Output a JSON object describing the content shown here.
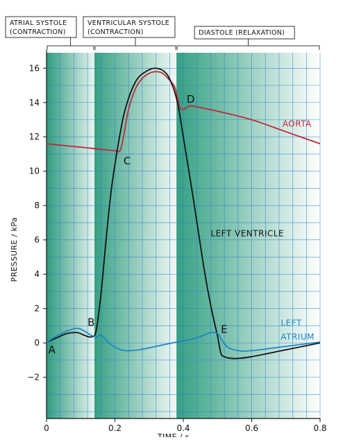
{
  "chart_data": {
    "type": "line",
    "xlabel": "TIME / s",
    "ylabel": "PRESSURE / kPa",
    "xlim": [
      0,
      0.8
    ],
    "ylim": [
      -4.4,
      16.9
    ],
    "x_ticks": [
      {
        "value": 0,
        "label": "0"
      },
      {
        "value": 0.2,
        "label": "0.2"
      },
      {
        "value": 0.4,
        "label": "0.4"
      },
      {
        "value": 0.6,
        "label": "0.6"
      },
      {
        "value": 0.8,
        "label": "0.8"
      }
    ],
    "y_ticks": [
      {
        "value": -2,
        "label": "−2"
      },
      {
        "value": 0,
        "label": "0"
      },
      {
        "value": 2,
        "label": "2"
      },
      {
        "value": 4,
        "label": "4"
      },
      {
        "value": 6,
        "label": "6"
      },
      {
        "value": 8,
        "label": "8"
      },
      {
        "value": 10,
        "label": "10"
      },
      {
        "value": 12,
        "label": "12"
      },
      {
        "value": 14,
        "label": "14"
      },
      {
        "value": 16,
        "label": "16"
      }
    ],
    "grid": true,
    "phases": [
      {
        "line1": "ATRIAL  SYSTOLE",
        "line2": "(CONTRACTION)",
        "start": 0,
        "end": 0.14
      },
      {
        "line1": "VENTRICULAR  SYSTOLE",
        "line2": "(CONTRACTION)",
        "start": 0.14,
        "end": 0.38
      },
      {
        "line1": "DIASTOLE  (RELAXATION)",
        "line2": "",
        "start": 0.38,
        "end": 0.8
      }
    ],
    "series": [
      {
        "name": "AORTA",
        "color": "#c0283c",
        "label_lines": [
          "AORTA"
        ],
        "label_at": [
          0.69,
          12.6
        ],
        "x": [
          0,
          0.05,
          0.1,
          0.15,
          0.2,
          0.215,
          0.225,
          0.24,
          0.26,
          0.28,
          0.3,
          0.32,
          0.34,
          0.36,
          0.375,
          0.385,
          0.39,
          0.4,
          0.42,
          0.45,
          0.5,
          0.6,
          0.7,
          0.8
        ],
        "y": [
          11.6,
          11.5,
          11.4,
          11.3,
          11.2,
          11.2,
          12.0,
          13.6,
          14.8,
          15.4,
          15.7,
          15.8,
          15.7,
          15.3,
          14.9,
          14.1,
          13.7,
          13.6,
          13.8,
          13.7,
          13.5,
          13.0,
          12.3,
          11.6
        ]
      },
      {
        "name": "LEFT  VENTRICLE",
        "color": "#111111",
        "label_lines": [
          "LEFT  VENTRICLE"
        ],
        "label_at": [
          0.48,
          6.2
        ],
        "x": [
          0,
          0.03,
          0.06,
          0.09,
          0.11,
          0.13,
          0.145,
          0.16,
          0.175,
          0.19,
          0.21,
          0.23,
          0.26,
          0.29,
          0.32,
          0.35,
          0.37,
          0.385,
          0.4,
          0.43,
          0.46,
          0.48,
          0.5,
          0.51,
          0.52,
          0.54,
          0.56,
          0.6,
          0.7,
          0.8
        ],
        "y": [
          0.05,
          0.3,
          0.55,
          0.6,
          0.45,
          0.35,
          0.7,
          3.0,
          6.2,
          9.0,
          11.6,
          13.6,
          15.2,
          15.8,
          16.0,
          15.7,
          14.9,
          13.8,
          12.0,
          8.3,
          4.4,
          2.2,
          0.4,
          -0.6,
          -0.8,
          -0.9,
          -0.9,
          -0.8,
          -0.4,
          0.0
        ]
      },
      {
        "name": "LEFT  ATRIUM",
        "color": "#1c86c8",
        "label_lines": [
          "LEFT",
          "ATRIUM"
        ],
        "label_at": [
          0.685,
          1.0
        ],
        "x": [
          0,
          0.03,
          0.06,
          0.09,
          0.11,
          0.13,
          0.145,
          0.16,
          0.18,
          0.2,
          0.23,
          0.27,
          0.32,
          0.38,
          0.43,
          0.46,
          0.48,
          0.5,
          0.51,
          0.53,
          0.56,
          0.6,
          0.7,
          0.8
        ],
        "y": [
          0.05,
          0.4,
          0.7,
          0.85,
          0.7,
          0.45,
          0.35,
          0.45,
          0.05,
          -0.25,
          -0.45,
          -0.4,
          -0.2,
          0.05,
          0.25,
          0.45,
          0.6,
          0.55,
          0.25,
          -0.25,
          -0.45,
          -0.45,
          -0.2,
          0.05
        ]
      }
    ],
    "annotations": [
      {
        "text": "A",
        "x": 0.005,
        "y": -0.6
      },
      {
        "text": "B",
        "x": 0.12,
        "y": 1.0
      },
      {
        "text": "C",
        "x": 0.225,
        "y": 10.4
      },
      {
        "text": "D",
        "x": 0.41,
        "y": 14.0
      },
      {
        "text": "E",
        "x": 0.51,
        "y": 0.6
      }
    ]
  }
}
